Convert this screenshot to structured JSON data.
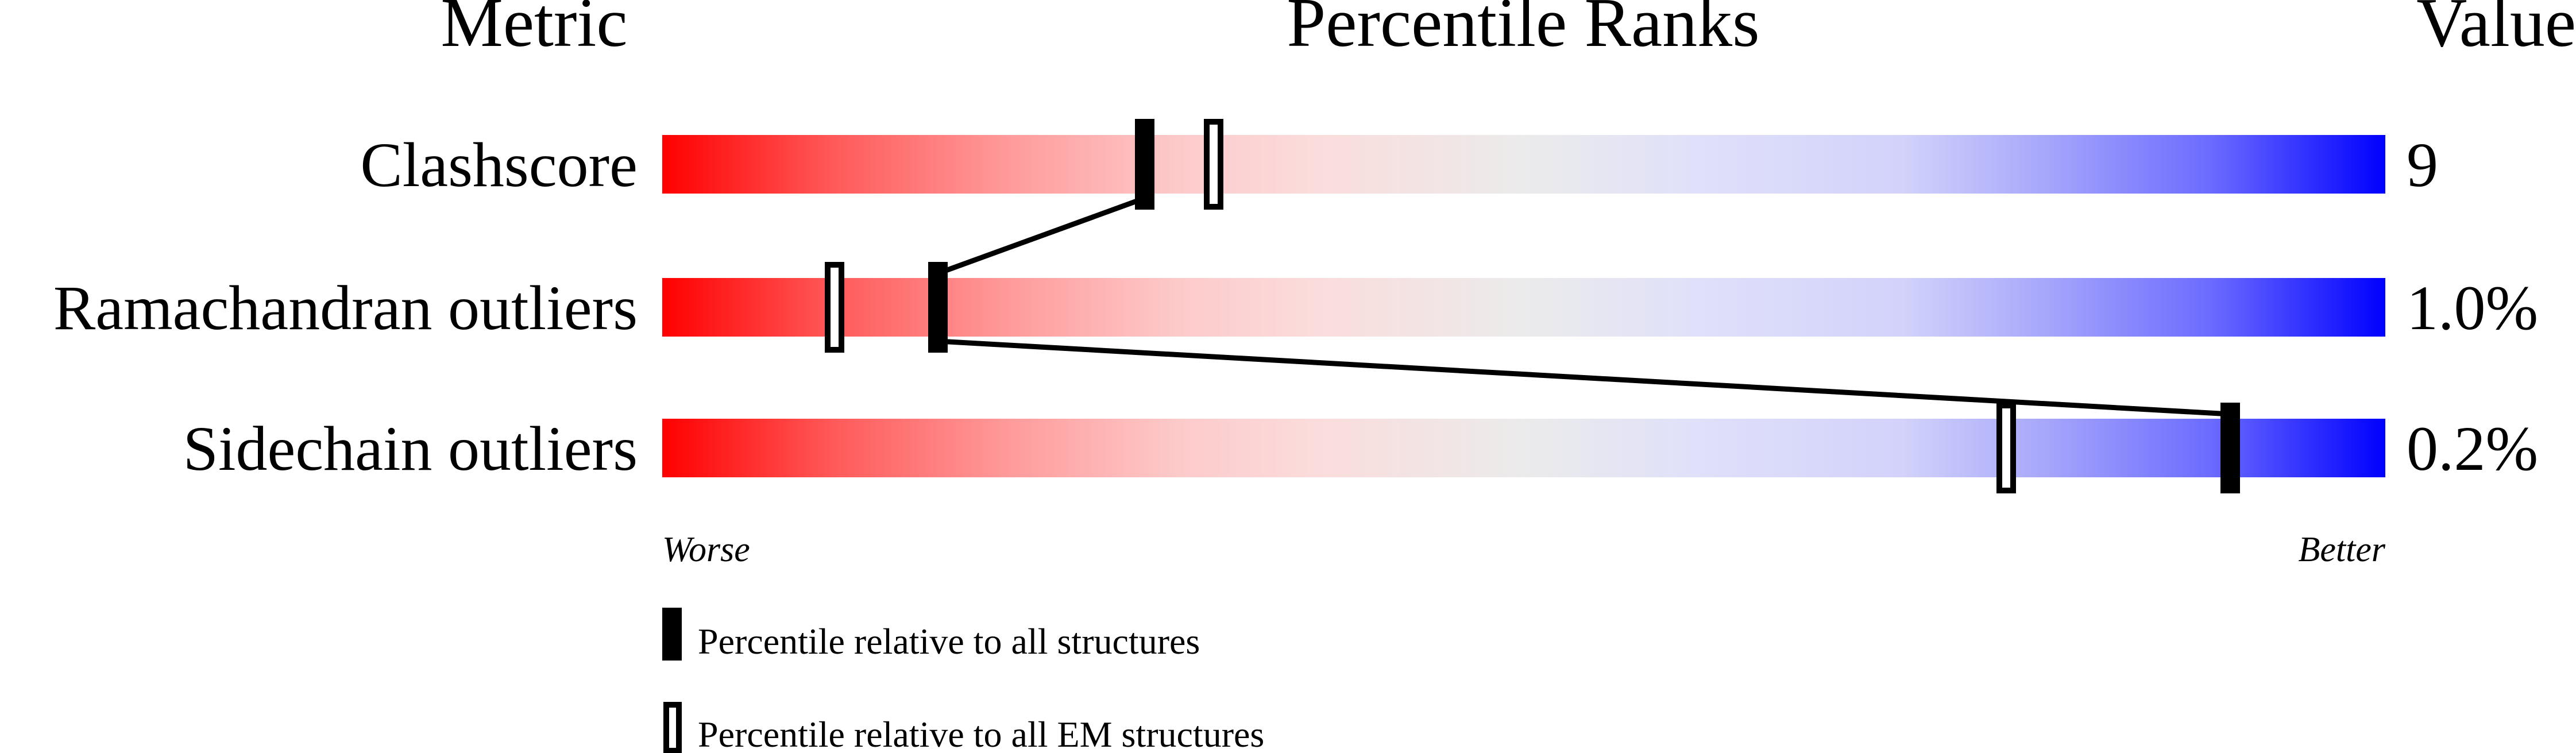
{
  "chart_data": {
    "type": "percentile-ranks",
    "headers": {
      "metric": "Metric",
      "ranks": "Percentile Ranks",
      "value": "Value"
    },
    "axis": {
      "left_label": "Worse",
      "right_label": "Better",
      "range": [
        0,
        100
      ]
    },
    "rows": [
      {
        "metric": "Clashscore",
        "value": "9",
        "percentile_all": 28,
        "percentile_em": 32
      },
      {
        "metric": "Ramachandran outliers",
        "value": "1.0%",
        "percentile_all": 16,
        "percentile_em": 10
      },
      {
        "metric": "Sidechain outliers",
        "value": "0.2%",
        "percentile_all": 91,
        "percentile_em": 78
      }
    ],
    "legend": [
      {
        "marker": "filled",
        "label": "Percentile relative to all structures"
      },
      {
        "marker": "open",
        "label": "Percentile relative to all EM structures"
      }
    ],
    "gradient_colors": {
      "worse": "#ff0000",
      "middle": "#ebebeb",
      "better": "#0000ff"
    }
  }
}
